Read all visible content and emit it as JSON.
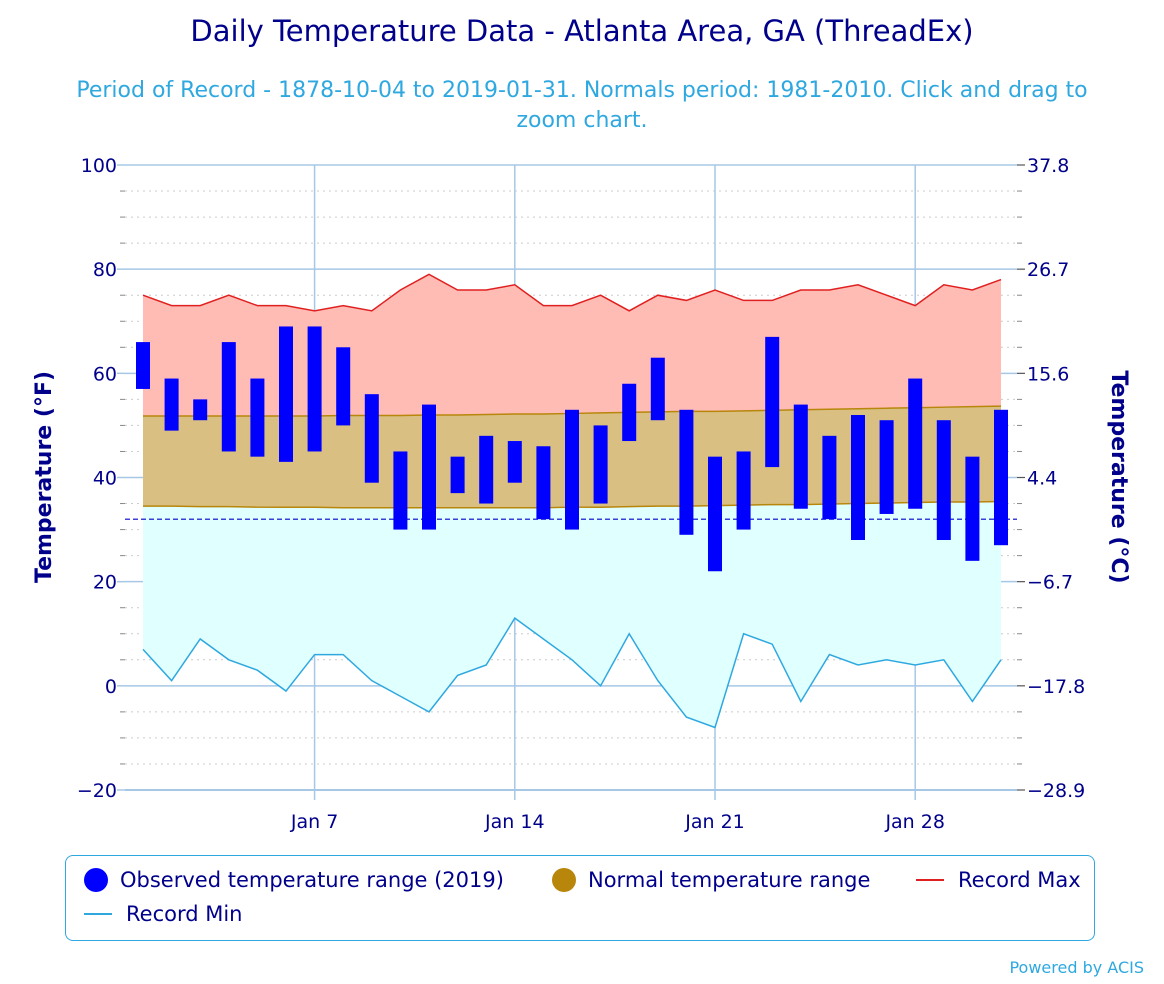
{
  "chart_data": {
    "type": "bar",
    "title": "Daily Temperature Data - Atlanta Area, GA (ThreadEx)",
    "subtitle": "Period of Record - 1878-10-04 to 2019-01-31. Normals period: 1981-2010. Click and drag to zoom chart.",
    "ylabel": "Temperature (°F)",
    "ylabel_right": "Temperature (°C)",
    "ylim": [
      -20,
      100
    ],
    "yticks": [
      100,
      80,
      60,
      40,
      20,
      0,
      -20
    ],
    "yticks_right": [
      "37.8",
      "26.7",
      "15.6",
      "4.4",
      "-6.7",
      "-17.8",
      "-28.9"
    ],
    "xticks": [
      {
        "day": 7,
        "label": "Jan 7"
      },
      {
        "day": 14,
        "label": "Jan 14"
      },
      {
        "day": 21,
        "label": "Jan 21"
      },
      {
        "day": 28,
        "label": "Jan 28"
      }
    ],
    "freezing_line": 32,
    "days": [
      1,
      2,
      3,
      4,
      5,
      6,
      7,
      8,
      9,
      10,
      11,
      12,
      13,
      14,
      15,
      16,
      17,
      18,
      19,
      20,
      21,
      22,
      23,
      24,
      25,
      26,
      27,
      28,
      29,
      30,
      31
    ],
    "series": [
      {
        "name": "Observed temperature range (2019)",
        "low": [
          57,
          49,
          51,
          45,
          44,
          43,
          45,
          50,
          39,
          30,
          30,
          37,
          35,
          39,
          32,
          30,
          35,
          47,
          51,
          29,
          22,
          30,
          42,
          34,
          32,
          28,
          33,
          34,
          28,
          24,
          27
        ],
        "high": [
          66,
          59,
          55,
          66,
          59,
          69,
          69,
          65,
          56,
          45,
          54,
          44,
          48,
          47,
          46,
          53,
          50,
          58,
          63,
          53,
          44,
          45,
          67,
          54,
          48,
          52,
          51,
          59,
          51,
          44,
          53
        ]
      },
      {
        "name": "Normal temperature range",
        "low": [
          34.5,
          34.5,
          34.4,
          34.4,
          34.3,
          34.3,
          34.3,
          34.2,
          34.2,
          34.2,
          34.2,
          34.2,
          34.2,
          34.2,
          34.2,
          34.3,
          34.3,
          34.4,
          34.5,
          34.5,
          34.6,
          34.7,
          34.8,
          34.8,
          34.9,
          35.0,
          35.1,
          35.2,
          35.3,
          35.3,
          35.4
        ],
        "high": [
          51.8,
          51.8,
          51.8,
          51.8,
          51.8,
          51.8,
          51.8,
          51.9,
          51.9,
          51.9,
          52.0,
          52.0,
          52.1,
          52.2,
          52.2,
          52.3,
          52.4,
          52.5,
          52.6,
          52.7,
          52.7,
          52.8,
          52.9,
          53.0,
          53.1,
          53.2,
          53.3,
          53.4,
          53.5,
          53.6,
          53.7
        ]
      },
      {
        "name": "Record Max",
        "values": [
          75,
          73,
          73,
          75,
          73,
          73,
          72,
          73,
          72,
          76,
          79,
          76,
          76,
          77,
          73,
          73,
          75,
          72,
          75,
          74,
          76,
          74,
          74,
          76,
          76,
          77,
          75,
          73,
          77,
          76,
          78
        ]
      },
      {
        "name": "Record Min",
        "values": [
          7,
          1,
          9,
          5,
          3,
          -1,
          6,
          6,
          1,
          -2,
          -5,
          2,
          4,
          13,
          9,
          5,
          0,
          10,
          1,
          -6,
          -8,
          10,
          8,
          -3,
          6,
          4,
          5,
          4,
          5,
          -3,
          5
        ]
      }
    ],
    "colors": {
      "observed": "#0000ff",
      "normal_fill": "#d9bf82",
      "normal_line": "#b8860b",
      "normal_legend": "#b8860b",
      "record_max_line": "#e02020",
      "record_max_fill": "#ffbcb5",
      "record_min_line": "#2fa8e0",
      "record_min_fill": "#e0ffff",
      "freezing_line": "#0000cc"
    },
    "legend": {
      "placement": "bottom",
      "items": [
        "Observed temperature range (2019)",
        "Normal temperature range",
        "Record Max",
        "Record Min"
      ]
    }
  },
  "credits": "Powered by ACIS"
}
